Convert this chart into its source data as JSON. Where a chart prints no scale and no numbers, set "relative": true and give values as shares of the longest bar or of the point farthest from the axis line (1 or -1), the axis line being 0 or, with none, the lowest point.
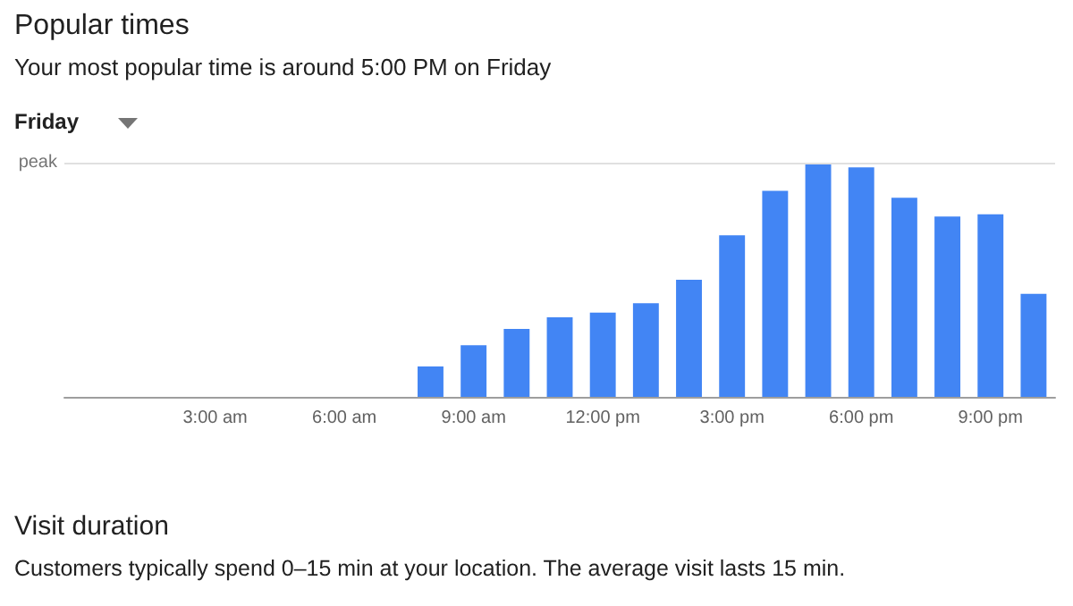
{
  "chart_data": {
    "type": "bar",
    "title": "Popular times",
    "subtitle": "Your most popular time is around 5:00 PM on Friday",
    "annotations": [
      "Friday",
      "Visit duration",
      "Customers typically spend 0–15 min at your location. The average visit lasts 15 min."
    ],
    "categories": [
      null,
      null,
      null,
      "3:00 am",
      null,
      null,
      "6:00 am",
      null,
      null,
      "9:00 am",
      null,
      null,
      "12:00 pm",
      null,
      null,
      "3:00 pm",
      null,
      null,
      "6:00 pm",
      null,
      null,
      "9:00 pm",
      null
    ],
    "values": [
      0,
      0,
      0,
      0,
      0,
      0,
      0,
      0,
      0.13,
      0.22,
      0.29,
      0.34,
      0.36,
      0.4,
      0.5,
      0.69,
      0.88,
      1,
      0.98,
      0.85,
      0.77,
      0.78,
      0.44
    ],
    "color": "#4285f4",
    "relative": true,
    "ref_lines": [
      {
        "axis": "y",
        "value": 1,
        "label": "peak",
        "color": "#e0e0e0"
      }
    ],
    "grid": false
  }
}
